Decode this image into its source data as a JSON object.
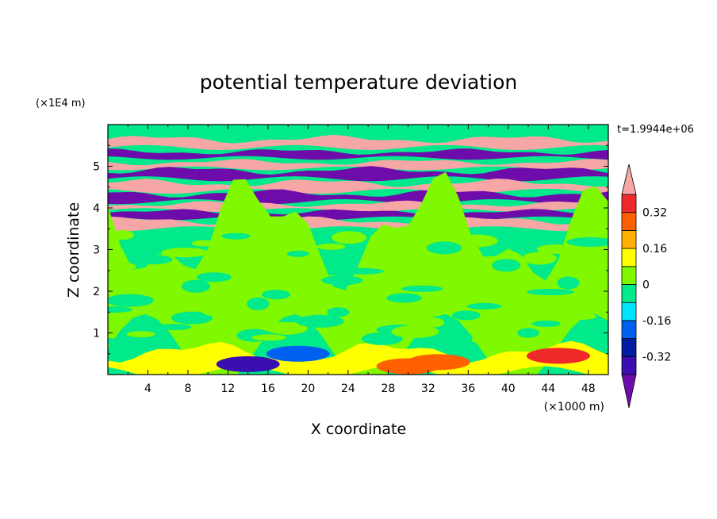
{
  "chart_data": {
    "type": "heatmap",
    "title": "potential temperature deviation",
    "xlabel": "X coordinate",
    "ylabel": "Z coordinate",
    "x_unit": "(×1000 m)",
    "y_unit": "(×1E4 m)",
    "time_label": "t=1.9944e+06",
    "x_range": [
      0,
      50
    ],
    "y_range": [
      0,
      6
    ],
    "x_ticks": [
      4,
      8,
      12,
      16,
      20,
      24,
      28,
      32,
      36,
      40,
      44,
      48
    ],
    "y_ticks": [
      1,
      2,
      3,
      4,
      5
    ],
    "grid": false,
    "legend": "right",
    "colorbar": {
      "levels": [
        -0.4,
        -0.32,
        -0.24,
        -0.16,
        -0.08,
        0,
        0.08,
        0.16,
        0.24,
        0.32,
        0.4
      ],
      "labels": [
        "0.32",
        "0.16",
        "0",
        "-0.16",
        "-0.32"
      ],
      "label_values": [
        0.32,
        0.16,
        0,
        -0.16,
        -0.32
      ],
      "colors": [
        "#6e0cab",
        "#3a0eb0",
        "#001ca0",
        "#0060f0",
        "#00e4ff",
        "#00e98a",
        "#80f800",
        "#ffff00",
        "#ffb000",
        "#ff6000",
        "#f02a2a",
        "#f7a6a6"
      ]
    },
    "bands": [
      {
        "z": [
          5.45,
          5.65
        ],
        "value": 0.45
      },
      {
        "z": [
          5.2,
          5.35
        ],
        "value": -0.45
      },
      {
        "z": [
          4.95,
          5.1
        ],
        "value": 0.45
      },
      {
        "z": [
          4.7,
          4.9
        ],
        "value": -0.45
      },
      {
        "z": [
          4.4,
          4.6
        ],
        "value": 0.45
      },
      {
        "z": [
          4.15,
          4.35
        ],
        "value": -0.45
      },
      {
        "z": [
          3.95,
          4.1
        ],
        "value": 0.45
      },
      {
        "z": [
          3.75,
          3.9
        ],
        "value": -0.45
      },
      {
        "z": [
          3.5,
          3.7
        ],
        "value": 0.45
      },
      {
        "z": [
          0.6,
          3.45
        ],
        "value": 0.04
      },
      {
        "z": [
          0.05,
          0.55
        ],
        "value": 0.1
      }
    ]
  }
}
